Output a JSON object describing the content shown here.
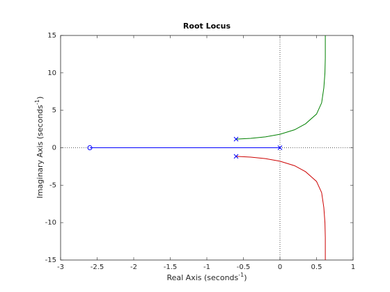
{
  "chart_data": {
    "type": "line",
    "title": "Root Locus",
    "xlabel": {
      "text": "Real Axis (seconds",
      "superscript": "-1",
      "suffix": ")"
    },
    "ylabel": {
      "text": "Imaginary Axis (seconds",
      "superscript": "-1",
      "suffix": ")"
    },
    "xlim": [
      -3,
      1
    ],
    "ylim": [
      -15,
      15
    ],
    "xticks": [
      -3,
      -2.5,
      -2,
      -1.5,
      -1,
      -0.5,
      0,
      0.5,
      1
    ],
    "yticks": [
      -15,
      -10,
      -5,
      0,
      5,
      10,
      15
    ],
    "zero_lines": true,
    "series": [
      {
        "color": "#0000ff",
        "x": [
          -2.6,
          0
        ],
        "y": [
          0,
          0
        ]
      },
      {
        "color": "#008000",
        "x": [
          -0.6,
          -0.4,
          -0.2,
          0,
          0.2,
          0.35,
          0.5,
          0.57,
          0.6,
          0.615,
          0.62,
          0.62
        ],
        "y": [
          1.15,
          1.25,
          1.45,
          1.8,
          2.4,
          3.2,
          4.5,
          6,
          8,
          10,
          12,
          15
        ]
      },
      {
        "color": "#cc0000",
        "x": [
          -0.6,
          -0.4,
          -0.2,
          0,
          0.2,
          0.35,
          0.5,
          0.57,
          0.6,
          0.615,
          0.62,
          0.62
        ],
        "y": [
          -1.15,
          -1.25,
          -1.45,
          -1.8,
          -2.4,
          -3.2,
          -4.5,
          -6,
          -8,
          -10,
          -12,
          -15
        ]
      }
    ],
    "poles": {
      "x": [
        0,
        -0.6,
        -0.6
      ],
      "y": [
        0,
        1.15,
        -1.15
      ],
      "color": "#0000ff"
    },
    "zeros": {
      "x": [
        -2.6
      ],
      "y": [
        0
      ],
      "color": "#0000ff"
    }
  }
}
